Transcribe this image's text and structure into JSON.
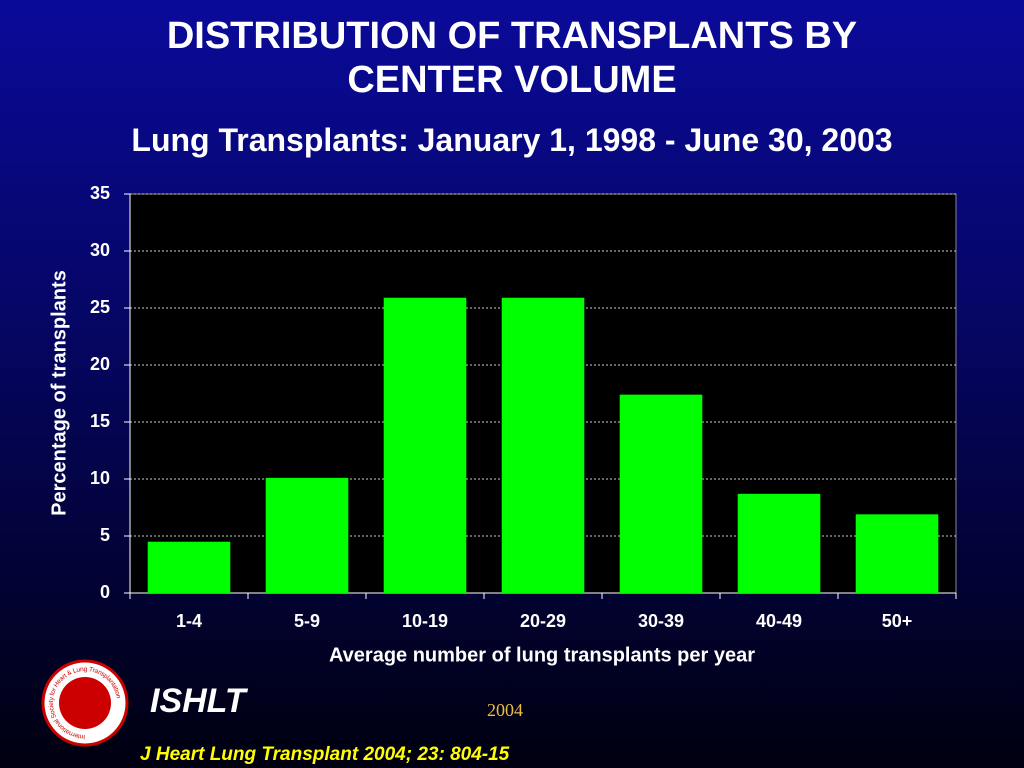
{
  "chart_data": {
    "type": "bar",
    "title": "DISTRIBUTION OF TRANSPLANTS BY CENTER VOLUME",
    "subtitle": "Lung Transplants: January 1, 1998 - June 30, 2003",
    "x_label": "Average number of lung transplants per year",
    "y_label": "Percentage of transplants",
    "categories": [
      "1-4",
      "5-9",
      "10-19",
      "20-29",
      "30-39",
      "40-49",
      "50+"
    ],
    "values": [
      4.5,
      10.1,
      25.9,
      25.9,
      17.4,
      8.7,
      6.9
    ],
    "color": "#00ff00",
    "ylim": [
      0,
      35
    ],
    "yticks": [
      0,
      5,
      10,
      15,
      20,
      25,
      30,
      35
    ],
    "grid": true
  },
  "footer": {
    "org": "ISHLT",
    "year": "2004",
    "citation": "J Heart Lung Transplant 2004; 23: 804-15"
  },
  "logo_text": "International Society for Heart & Lung Transplantation"
}
